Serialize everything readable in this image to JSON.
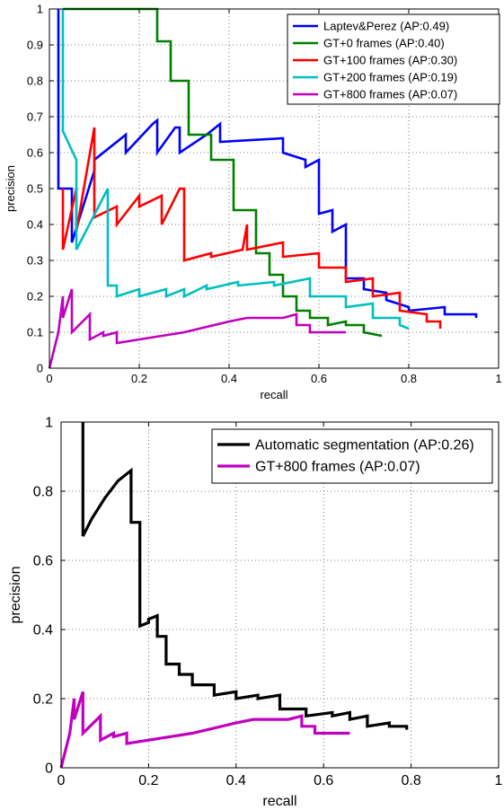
{
  "chart_data": [
    {
      "type": "line",
      "xlabel": "recall",
      "ylabel": "precision",
      "xlim": [
        0,
        1
      ],
      "ylim": [
        0,
        1
      ],
      "xticks": [
        "0",
        "0.2",
        "0.4",
        "0.6",
        "0.8",
        "1"
      ],
      "yticks": [
        "0",
        "0.1",
        "0.2",
        "0.3",
        "0.4",
        "0.5",
        "0.6",
        "0.7",
        "0.8",
        "0.9",
        "1"
      ],
      "grid": true,
      "legend_position": "top-right",
      "series": [
        {
          "name": "Laptev&Perez (AP:0.49)",
          "color": "#0000ff",
          "points": [
            [
              0.02,
              1
            ],
            [
              0.02,
              0.5
            ],
            [
              0.05,
              0.5
            ],
            [
              0.05,
              0.35
            ],
            [
              0.1,
              0.55
            ],
            [
              0.1,
              0.58
            ],
            [
              0.17,
              0.65
            ],
            [
              0.17,
              0.6
            ],
            [
              0.23,
              0.68
            ],
            [
              0.24,
              0.69
            ],
            [
              0.24,
              0.6
            ],
            [
              0.28,
              0.67
            ],
            [
              0.29,
              0.67
            ],
            [
              0.29,
              0.6
            ],
            [
              0.35,
              0.65
            ],
            [
              0.38,
              0.68
            ],
            [
              0.38,
              0.63
            ],
            [
              0.52,
              0.64
            ],
            [
              0.52,
              0.6
            ],
            [
              0.57,
              0.58
            ],
            [
              0.57,
              0.56
            ],
            [
              0.6,
              0.58
            ],
            [
              0.6,
              0.43
            ],
            [
              0.63,
              0.44
            ],
            [
              0.63,
              0.38
            ],
            [
              0.66,
              0.4
            ],
            [
              0.66,
              0.25
            ],
            [
              0.7,
              0.25
            ],
            [
              0.7,
              0.22
            ],
            [
              0.75,
              0.21
            ],
            [
              0.75,
              0.19
            ],
            [
              0.8,
              0.17
            ],
            [
              0.8,
              0.16
            ],
            [
              0.88,
              0.17
            ],
            [
              0.88,
              0.15
            ],
            [
              0.95,
              0.15
            ],
            [
              0.95,
              0.14
            ]
          ]
        },
        {
          "name": "GT+0 frames (AP:0.40)",
          "color": "#008000",
          "points": [
            [
              0.03,
              1
            ],
            [
              0.24,
              1
            ],
            [
              0.24,
              0.91
            ],
            [
              0.27,
              0.91
            ],
            [
              0.27,
              0.8
            ],
            [
              0.31,
              0.8
            ],
            [
              0.31,
              0.65
            ],
            [
              0.36,
              0.65
            ],
            [
              0.36,
              0.58
            ],
            [
              0.41,
              0.58
            ],
            [
              0.41,
              0.44
            ],
            [
              0.46,
              0.44
            ],
            [
              0.46,
              0.32
            ],
            [
              0.49,
              0.32
            ],
            [
              0.49,
              0.26
            ],
            [
              0.52,
              0.26
            ],
            [
              0.52,
              0.2
            ],
            [
              0.55,
              0.2
            ],
            [
              0.55,
              0.16
            ],
            [
              0.58,
              0.16
            ],
            [
              0.58,
              0.14
            ],
            [
              0.62,
              0.14
            ],
            [
              0.62,
              0.12
            ],
            [
              0.66,
              0.13
            ],
            [
              0.66,
              0.12
            ],
            [
              0.7,
              0.12
            ],
            [
              0.7,
              0.1
            ],
            [
              0.74,
              0.09
            ]
          ]
        },
        {
          "name": "GT+100 frames (AP:0.30)",
          "color": "#ff0000",
          "points": [
            [
              0.03,
              0.5
            ],
            [
              0.03,
              0.33
            ],
            [
              0.06,
              0.5
            ],
            [
              0.06,
              0.38
            ],
            [
              0.1,
              0.67
            ],
            [
              0.1,
              0.42
            ],
            [
              0.15,
              0.45
            ],
            [
              0.15,
              0.4
            ],
            [
              0.2,
              0.48
            ],
            [
              0.2,
              0.45
            ],
            [
              0.25,
              0.48
            ],
            [
              0.25,
              0.4
            ],
            [
              0.29,
              0.5
            ],
            [
              0.3,
              0.5
            ],
            [
              0.3,
              0.3
            ],
            [
              0.36,
              0.32
            ],
            [
              0.36,
              0.31
            ],
            [
              0.43,
              0.33
            ],
            [
              0.44,
              0.4
            ],
            [
              0.44,
              0.33
            ],
            [
              0.52,
              0.35
            ],
            [
              0.52,
              0.31
            ],
            [
              0.6,
              0.32
            ],
            [
              0.6,
              0.28
            ],
            [
              0.66,
              0.28
            ],
            [
              0.66,
              0.24
            ],
            [
              0.72,
              0.25
            ],
            [
              0.72,
              0.2
            ],
            [
              0.78,
              0.21
            ],
            [
              0.78,
              0.16
            ],
            [
              0.84,
              0.15
            ],
            [
              0.84,
              0.13
            ],
            [
              0.87,
              0.13
            ],
            [
              0.87,
              0.11
            ]
          ]
        },
        {
          "name": "GT+200 frames (AP:0.19)",
          "color": "#00bfbf",
          "points": [
            [
              0.03,
              1
            ],
            [
              0.03,
              0.66
            ],
            [
              0.06,
              0.58
            ],
            [
              0.06,
              0.33
            ],
            [
              0.13,
              0.5
            ],
            [
              0.13,
              0.23
            ],
            [
              0.15,
              0.23
            ],
            [
              0.15,
              0.2
            ],
            [
              0.2,
              0.22
            ],
            [
              0.2,
              0.2
            ],
            [
              0.26,
              0.22
            ],
            [
              0.26,
              0.2
            ],
            [
              0.3,
              0.22
            ],
            [
              0.3,
              0.2
            ],
            [
              0.35,
              0.23
            ],
            [
              0.35,
              0.22
            ],
            [
              0.42,
              0.24
            ],
            [
              0.42,
              0.23
            ],
            [
              0.5,
              0.24
            ],
            [
              0.5,
              0.23
            ],
            [
              0.58,
              0.25
            ],
            [
              0.58,
              0.2
            ],
            [
              0.66,
              0.2
            ],
            [
              0.66,
              0.17
            ],
            [
              0.72,
              0.18
            ],
            [
              0.72,
              0.14
            ],
            [
              0.78,
              0.14
            ],
            [
              0.78,
              0.12
            ],
            [
              0.8,
              0.11
            ]
          ]
        },
        {
          "name": "GT+800 frames (AP:0.07)",
          "color": "#bf00bf",
          "points": [
            [
              0.0,
              0.0
            ],
            [
              0.02,
              0.1
            ],
            [
              0.03,
              0.2
            ],
            [
              0.03,
              0.14
            ],
            [
              0.05,
              0.22
            ],
            [
              0.05,
              0.1
            ],
            [
              0.09,
              0.15
            ],
            [
              0.09,
              0.08
            ],
            [
              0.12,
              0.1
            ],
            [
              0.12,
              0.09
            ],
            [
              0.15,
              0.1
            ],
            [
              0.15,
              0.07
            ],
            [
              0.2,
              0.08
            ],
            [
              0.3,
              0.1
            ],
            [
              0.4,
              0.13
            ],
            [
              0.44,
              0.14
            ],
            [
              0.52,
              0.14
            ],
            [
              0.55,
              0.15
            ],
            [
              0.55,
              0.12
            ],
            [
              0.58,
              0.12
            ],
            [
              0.58,
              0.1
            ],
            [
              0.63,
              0.1
            ],
            [
              0.66,
              0.1
            ]
          ]
        }
      ]
    },
    {
      "type": "line",
      "xlabel": "recall",
      "ylabel": "precision",
      "xlim": [
        0,
        1
      ],
      "ylim": [
        0,
        1
      ],
      "xticks": [
        "0",
        "0.2",
        "0.4",
        "0.6",
        "0.8",
        "1"
      ],
      "yticks": [
        "0",
        "0.2",
        "0.4",
        "0.6",
        "0.8",
        "1"
      ],
      "grid": true,
      "legend_position": "top-right",
      "series": [
        {
          "name": "Automatic segmentation (AP:0.26)",
          "color": "#000000",
          "points": [
            [
              0.05,
              1
            ],
            [
              0.05,
              0.67
            ],
            [
              0.07,
              0.72
            ],
            [
              0.1,
              0.78
            ],
            [
              0.13,
              0.83
            ],
            [
              0.16,
              0.86
            ],
            [
              0.16,
              0.71
            ],
            [
              0.18,
              0.71
            ],
            [
              0.18,
              0.67
            ],
            [
              0.18,
              0.41
            ],
            [
              0.2,
              0.42
            ],
            [
              0.2,
              0.43
            ],
            [
              0.22,
              0.44
            ],
            [
              0.22,
              0.38
            ],
            [
              0.24,
              0.38
            ],
            [
              0.24,
              0.3
            ],
            [
              0.27,
              0.3
            ],
            [
              0.27,
              0.27
            ],
            [
              0.3,
              0.27
            ],
            [
              0.3,
              0.24
            ],
            [
              0.35,
              0.24
            ],
            [
              0.35,
              0.21
            ],
            [
              0.4,
              0.22
            ],
            [
              0.4,
              0.2
            ],
            [
              0.45,
              0.21
            ],
            [
              0.45,
              0.2
            ],
            [
              0.5,
              0.21
            ],
            [
              0.5,
              0.17
            ],
            [
              0.56,
              0.17
            ],
            [
              0.56,
              0.15
            ],
            [
              0.62,
              0.16
            ],
            [
              0.62,
              0.15
            ],
            [
              0.66,
              0.16
            ],
            [
              0.66,
              0.14
            ],
            [
              0.7,
              0.15
            ],
            [
              0.7,
              0.12
            ],
            [
              0.75,
              0.13
            ],
            [
              0.75,
              0.12
            ],
            [
              0.79,
              0.12
            ],
            [
              0.79,
              0.11
            ]
          ]
        },
        {
          "name": "GT+800 frames (AP:0.07)",
          "color": "#bf00bf",
          "points": [
            [
              0.0,
              0.0
            ],
            [
              0.02,
              0.1
            ],
            [
              0.03,
              0.2
            ],
            [
              0.03,
              0.14
            ],
            [
              0.05,
              0.22
            ],
            [
              0.05,
              0.1
            ],
            [
              0.09,
              0.15
            ],
            [
              0.09,
              0.08
            ],
            [
              0.12,
              0.1
            ],
            [
              0.12,
              0.09
            ],
            [
              0.15,
              0.1
            ],
            [
              0.15,
              0.07
            ],
            [
              0.2,
              0.08
            ],
            [
              0.3,
              0.1
            ],
            [
              0.4,
              0.13
            ],
            [
              0.44,
              0.14
            ],
            [
              0.52,
              0.14
            ],
            [
              0.55,
              0.15
            ],
            [
              0.55,
              0.12
            ],
            [
              0.58,
              0.12
            ],
            [
              0.58,
              0.1
            ],
            [
              0.63,
              0.1
            ],
            [
              0.66,
              0.1
            ]
          ]
        }
      ]
    }
  ]
}
